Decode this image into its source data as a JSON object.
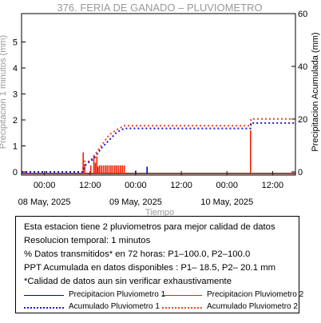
{
  "chart_data": {
    "type": "bar+line",
    "title": "376. FERIA DE GANADO – PLUVIOMETRO",
    "xlabel": "Tiempo",
    "ylabel_left": "Precipitacion 1 minutos (mm)",
    "ylabel_right": "Precipitacion Acumulada (mm)",
    "ylim_left": [
      0,
      6
    ],
    "ylim_right": [
      0,
      60
    ],
    "yticks_left": [
      "0",
      "1",
      "2",
      "3",
      "4",
      "5"
    ],
    "yticks_right": [
      "0",
      "20",
      "40",
      "60"
    ],
    "xlim_hours": [
      -6,
      66
    ],
    "xticks": [
      {
        "h": 0,
        "label": "00:00"
      },
      {
        "h": 12,
        "label": "12:00"
      },
      {
        "h": 24,
        "label": "00:00"
      },
      {
        "h": 36,
        "label": "12:00"
      },
      {
        "h": 48,
        "label": "00:00"
      },
      {
        "h": 60,
        "label": "12:00"
      }
    ],
    "date_labels": [
      {
        "h": 0,
        "label": "08 May, 2025"
      },
      {
        "h": 24,
        "label": "09 May, 2025"
      },
      {
        "h": 48,
        "label": "10 May, 2025"
      }
    ],
    "p1_bars": [
      {
        "h": 24.0,
        "v": 0.05
      },
      {
        "h": 27.0,
        "v": 0.2
      }
    ],
    "p2_bars": [
      {
        "h": 10.2,
        "v": 0.75
      },
      {
        "h": 10.6,
        "v": 0.3
      },
      {
        "h": 12.2,
        "v": 0.25
      },
      {
        "h": 13.0,
        "v": 0.65
      },
      {
        "h": 13.4,
        "v": 0.35
      },
      {
        "h": 13.8,
        "v": 0.6
      },
      {
        "h": 14.1,
        "v": 0.2
      },
      {
        "h": 14.5,
        "v": 0.25
      },
      {
        "h": 15.0,
        "v": 0.25
      },
      {
        "h": 15.5,
        "v": 0.25
      },
      {
        "h": 16.0,
        "v": 0.25
      },
      {
        "h": 16.5,
        "v": 0.25
      },
      {
        "h": 17.0,
        "v": 0.25
      },
      {
        "h": 17.5,
        "v": 0.25
      },
      {
        "h": 18.0,
        "v": 0.25
      },
      {
        "h": 18.5,
        "v": 0.25
      },
      {
        "h": 19.0,
        "v": 0.25
      },
      {
        "h": 19.5,
        "v": 0.25
      },
      {
        "h": 20.0,
        "v": 0.25
      },
      {
        "h": 20.5,
        "v": 0.25
      },
      {
        "h": 21.0,
        "v": 0.25
      },
      {
        "h": 54.2,
        "v": 1.6
      }
    ],
    "p1_cum": [
      [
        -6,
        0
      ],
      [
        10,
        0
      ],
      [
        11,
        3
      ],
      [
        13,
        5
      ],
      [
        15,
        9
      ],
      [
        17,
        12
      ],
      [
        19,
        15
      ],
      [
        21,
        16.5
      ],
      [
        24,
        16.5
      ],
      [
        54.2,
        16.5
      ],
      [
        54.3,
        18.5
      ],
      [
        66,
        18.5
      ]
    ],
    "p2_cum": [
      [
        -6,
        0
      ],
      [
        10,
        0
      ],
      [
        10.3,
        4
      ],
      [
        12,
        4
      ],
      [
        13,
        6
      ],
      [
        15,
        10
      ],
      [
        17,
        14
      ],
      [
        19,
        16
      ],
      [
        21,
        17.5
      ],
      [
        24,
        17.5
      ],
      [
        54.2,
        17.5
      ],
      [
        54.3,
        20.1
      ],
      [
        66,
        20.1
      ]
    ],
    "colors": {
      "p1": "#0000cc",
      "p2": "#ee2200",
      "p1_cum": "#1a1acc",
      "p2_cum": "#ee4422"
    }
  },
  "info": {
    "line1": "Esta estacion tiene 2 pluviometros para mejor calidad de datos",
    "line2": "Resolucion temporal: 1 minutos",
    "line3": "% Datos transmitidos* en 72 horas: P1–100.0, P2–100.0",
    "line4": "PPT Acumulada en datos disponibles : P1– 18.5, P2– 20.1 mm",
    "line5": "*Calidad de datos aun sin verificar exhaustivamente"
  },
  "legend": {
    "p1": "Precipitacion Pluviometro 1",
    "p2": "Precipitacion Pluviometro 2",
    "p1_cum": "Acumulado Pluviometro 1",
    "p2_cum": "Acumulado Pluviometro 2"
  }
}
